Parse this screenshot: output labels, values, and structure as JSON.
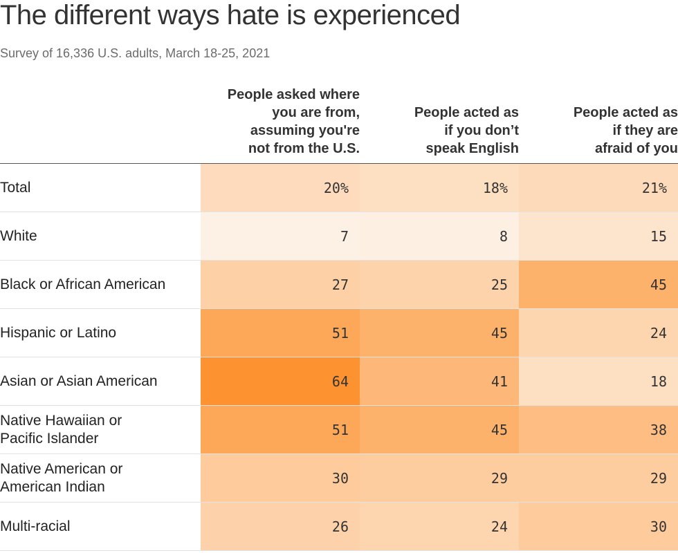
{
  "chart_data": {
    "type": "heatmap",
    "title": "The different ways hate is experienced",
    "subtitle": "Survey of 16,336 U.S. adults, March 18-25, 2021",
    "columns": [
      "People asked where\nyou are from,\nassuming you're\nnot from the U.S.",
      "People acted as\nif you don’t\nspeak English",
      "People acted as\nif they are\nafraid of you"
    ],
    "rows": [
      {
        "label": "Total",
        "values": [
          20,
          18,
          21
        ],
        "display": [
          "20%",
          "18%",
          "21%"
        ]
      },
      {
        "label": "White",
        "values": [
          7,
          8,
          15
        ],
        "display": [
          "7",
          "8",
          "15"
        ]
      },
      {
        "label": "Black or African American",
        "values": [
          27,
          25,
          45
        ],
        "display": [
          "27",
          "25",
          "45"
        ]
      },
      {
        "label": "Hispanic or Latino",
        "values": [
          51,
          45,
          24
        ],
        "display": [
          "51",
          "45",
          "24"
        ]
      },
      {
        "label": "Asian or Asian American",
        "values": [
          64,
          41,
          18
        ],
        "display": [
          "64",
          "41",
          "18"
        ]
      },
      {
        "label": "Native Hawaiian or\nPacific Islander",
        "values": [
          51,
          45,
          38
        ],
        "display": [
          "51",
          "45",
          "38"
        ]
      },
      {
        "label": "Native American or\nAmerican Indian",
        "values": [
          30,
          29,
          29
        ],
        "display": [
          "30",
          "29",
          "29"
        ]
      },
      {
        "label": "Multi-racial",
        "values": [
          26,
          24,
          30
        ],
        "display": [
          "26",
          "24",
          "30"
        ]
      }
    ],
    "color_scale": {
      "low": "#fdf1e5",
      "high": "#fd9230",
      "min": 7,
      "max": 64
    }
  }
}
